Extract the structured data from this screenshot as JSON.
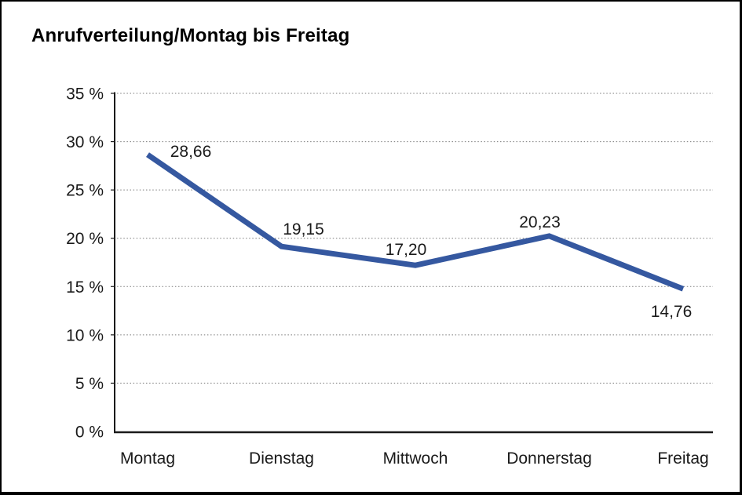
{
  "title": "Anrufverteilung/Montag bis Freitag",
  "chart_data": {
    "type": "line",
    "title": "Anrufverteilung/Montag bis Freitag",
    "categories": [
      "Montag",
      "Dienstag",
      "Mittwoch",
      "Donnerstag",
      "Freitag"
    ],
    "values": [
      28.66,
      19.15,
      17.2,
      20.23,
      14.76
    ],
    "value_labels": [
      "28,66",
      "19,15",
      "17,20",
      "20,23",
      "14,76"
    ],
    "y_ticks": [
      0,
      5,
      10,
      15,
      20,
      25,
      30,
      35
    ],
    "y_tick_labels": [
      "0 %",
      "5 %",
      "10 %",
      "15 %",
      "20 %",
      "25 %",
      "30 %",
      "35 %"
    ],
    "ylim": [
      0,
      35
    ],
    "xlabel": "",
    "ylabel": "",
    "legend": "none",
    "grid": "dotted horizontal",
    "line_color": "#3558A0",
    "axis_color": "#1a1a1a",
    "gridline_color": "#7a7a7a",
    "text_color": "#1a1a1a"
  }
}
